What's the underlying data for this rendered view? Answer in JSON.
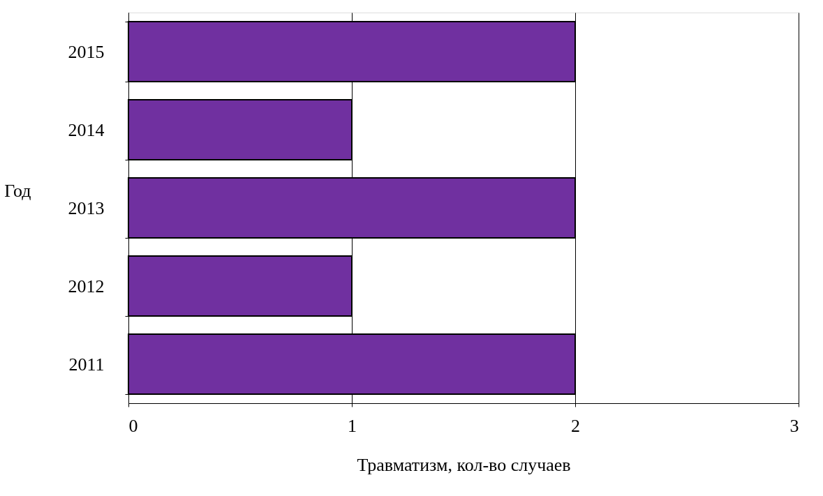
{
  "chart_data": {
    "type": "bar",
    "orientation": "horizontal",
    "xlabel": "Травматизм,  кол-во случаев",
    "ylabel": "Год",
    "categories": [
      "2015",
      "2014",
      "2013",
      "2012",
      "2011"
    ],
    "series": [
      {
        "color": "#7030a0",
        "values": [
          2,
          1,
          2,
          1,
          2
        ]
      }
    ],
    "xlim": [
      0,
      3
    ],
    "xticks": [
      0,
      1,
      2,
      3
    ],
    "grid": "x"
  }
}
